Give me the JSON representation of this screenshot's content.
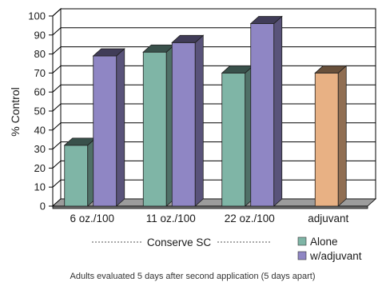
{
  "chart_data": {
    "type": "bar",
    "style": "3d-clustered-column",
    "categories": [
      "6 oz./100",
      "11 oz./100",
      "22 oz./100",
      "adjuvant"
    ],
    "series": [
      {
        "name": "Alone",
        "values": [
          32,
          81,
          70,
          null
        ],
        "color": "#7fb5a6"
      },
      {
        "name": "w/adjuvant",
        "values": [
          79,
          86,
          96,
          null
        ],
        "color": "#8f86c4"
      },
      {
        "name": "",
        "values": [
          null,
          null,
          null,
          70
        ],
        "color": "#e8b184"
      }
    ],
    "ylabel": "% Control",
    "ylim": [
      0,
      100
    ],
    "ytick_step": 10,
    "grid": true,
    "legend_position": "bottom-right",
    "group_label": "Conserve SC",
    "caption": "Adults evaluated 5 days after second application (5 days apart)"
  }
}
